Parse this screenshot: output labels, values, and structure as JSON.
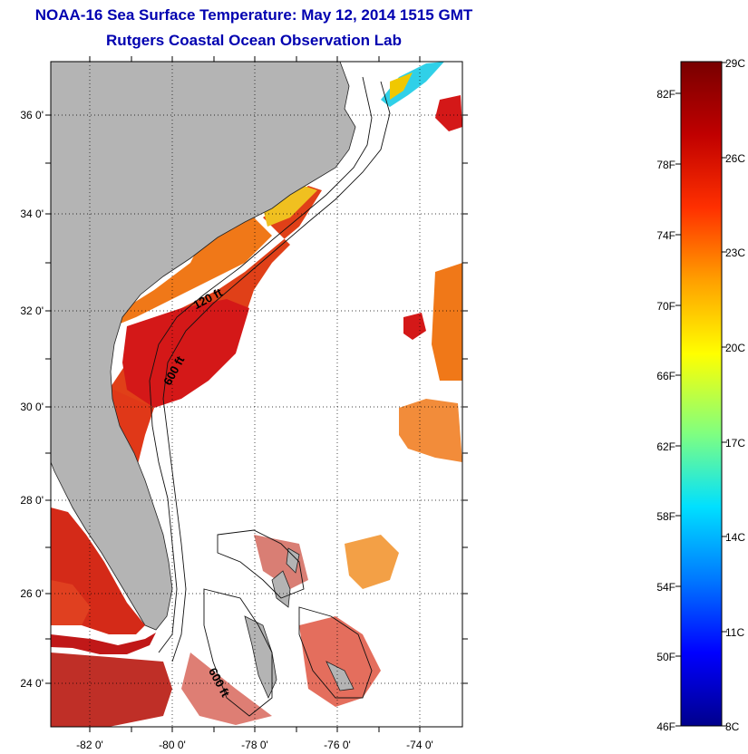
{
  "map": {
    "title": "NOAA-16 Sea Surface Temperature:  May 12, 2014 1515 GMT",
    "subtitle": "Rutgers Coastal Ocean Observation Lab",
    "lon_ticks": [
      "-82 0'",
      "-80 0'",
      "-78 0'",
      "-76 0'",
      "-74 0'"
    ],
    "lat_ticks": [
      "24 0'",
      "26 0'",
      "28 0'",
      "30 0'",
      "32 0'",
      "34 0'",
      "36 0'"
    ],
    "contour_labels": [
      "120 ft",
      "600 ft",
      "600 ft"
    ],
    "colors": {
      "land": "#b4b4b4",
      "title": "#0000b0",
      "warm": "#d81818",
      "hot": "#c00000",
      "orange": "#f07818",
      "yellow": "#f0c800",
      "cyan": "#30d0e8"
    }
  },
  "colorbar": {
    "f_labels": [
      "46F",
      "50F",
      "54F",
      "58F",
      "62F",
      "66F",
      "70F",
      "74F",
      "78F",
      "82F"
    ],
    "c_labels": [
      "8C",
      "11C",
      "14C",
      "17C",
      "20C",
      "23C",
      "26C",
      "29C"
    ],
    "stops": [
      "#00008c",
      "#0000ff",
      "#0078ff",
      "#00e0ff",
      "#80ff80",
      "#ffff00",
      "#ffa000",
      "#ff3000",
      "#a00000",
      "#780000"
    ]
  }
}
